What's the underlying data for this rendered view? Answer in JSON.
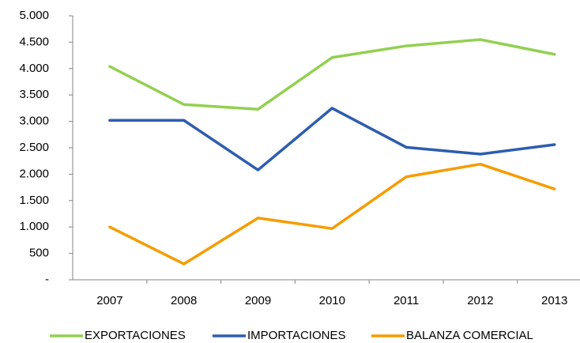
{
  "chart_data": {
    "type": "line",
    "categories": [
      "2007",
      "2008",
      "2009",
      "2010",
      "2011",
      "2012",
      "2013"
    ],
    "series": [
      {
        "name": "EXPORTACIONES",
        "color": "#92d050",
        "values": [
          4040,
          3320,
          3230,
          4210,
          4430,
          4550,
          4270
        ]
      },
      {
        "name": "IMPORTACIONES",
        "color": "#2e5daf",
        "values": [
          3020,
          3020,
          2080,
          3250,
          2510,
          2380,
          2560
        ]
      },
      {
        "name": "BALANZA COMERCIAL",
        "color": "#f59c00",
        "values": [
          1000,
          300,
          1170,
          970,
          1950,
          2190,
          1720
        ]
      }
    ],
    "ylim": [
      0,
      5000
    ],
    "yticks": [
      {
        "value": 0,
        "label": "-"
      },
      {
        "value": 500,
        "label": "500"
      },
      {
        "value": 1000,
        "label": "1.000"
      },
      {
        "value": 1500,
        "label": "1.500"
      },
      {
        "value": 2000,
        "label": "2.000"
      },
      {
        "value": 2500,
        "label": "2.500"
      },
      {
        "value": 3000,
        "label": "3.000"
      },
      {
        "value": 3500,
        "label": "3.500"
      },
      {
        "value": 4000,
        "label": "4.000"
      },
      {
        "value": 4500,
        "label": "4.500"
      },
      {
        "value": 5000,
        "label": "5.000"
      }
    ],
    "grid": false,
    "legend": "bottom"
  }
}
